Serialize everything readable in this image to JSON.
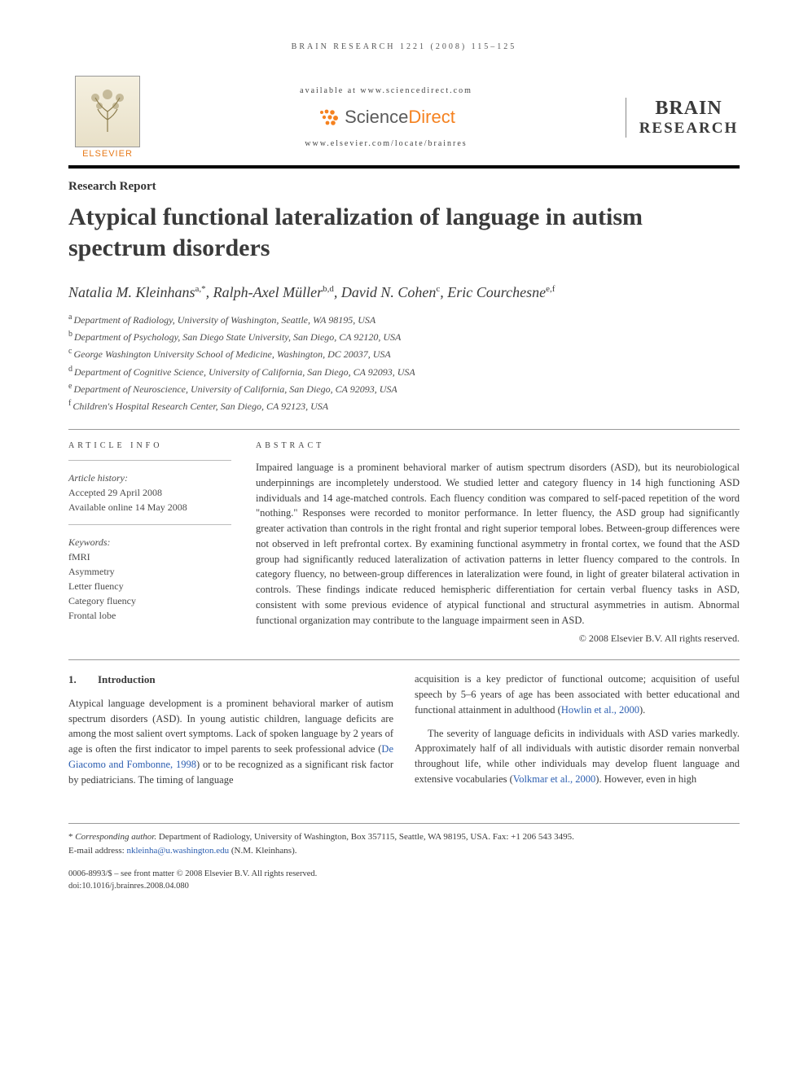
{
  "running_head": "BRAIN RESEARCH 1221 (2008) 115–125",
  "banner": {
    "publisher": "ELSEVIER",
    "available_line": "available at www.sciencedirect.com",
    "sd_brand_prefix": "Science",
    "sd_brand_suffix": "Direct",
    "locate_line": "www.elsevier.com/locate/brainres",
    "journal_line1": "BRAIN",
    "journal_line2": "RESEARCH"
  },
  "article": {
    "section_label": "Research Report",
    "title": "Atypical functional lateralization of language in autism spectrum disorders",
    "authors_html": "Natalia M. Kleinhans",
    "authors": [
      {
        "name": "Natalia M. Kleinhans",
        "sup": "a,*"
      },
      {
        "name": "Ralph-Axel Müller",
        "sup": "b,d"
      },
      {
        "name": "David N. Cohen",
        "sup": "c"
      },
      {
        "name": "Eric Courchesne",
        "sup": "e,f"
      }
    ],
    "affiliations": [
      {
        "sup": "a",
        "text": "Department of Radiology, University of Washington, Seattle, WA 98195, USA"
      },
      {
        "sup": "b",
        "text": "Department of Psychology, San Diego State University, San Diego, CA 92120, USA"
      },
      {
        "sup": "c",
        "text": "George Washington University School of Medicine, Washington, DC 20037, USA"
      },
      {
        "sup": "d",
        "text": "Department of Cognitive Science, University of California, San Diego, CA 92093, USA"
      },
      {
        "sup": "e",
        "text": "Department of Neuroscience, University of California, San Diego, CA 92093, USA"
      },
      {
        "sup": "f",
        "text": "Children's Hospital Research Center, San Diego, CA 92123, USA"
      }
    ]
  },
  "info": {
    "heading": "ARTICLE INFO",
    "history_label": "Article history:",
    "accepted": "Accepted 29 April 2008",
    "online": "Available online 14 May 2008",
    "keywords_label": "Keywords:",
    "keywords": [
      "fMRI",
      "Asymmetry",
      "Letter fluency",
      "Category fluency",
      "Frontal lobe"
    ]
  },
  "abstract": {
    "heading": "ABSTRACT",
    "text": "Impaired language is a prominent behavioral marker of autism spectrum disorders (ASD), but its neurobiological underpinnings are incompletely understood. We studied letter and category fluency in 14 high functioning ASD individuals and 14 age-matched controls. Each fluency condition was compared to self-paced repetition of the word \"nothing.\" Responses were recorded to monitor performance. In letter fluency, the ASD group had significantly greater activation than controls in the right frontal and right superior temporal lobes. Between-group differences were not observed in left prefrontal cortex. By examining functional asymmetry in frontal cortex, we found that the ASD group had significantly reduced lateralization of activation patterns in letter fluency compared to the controls. In category fluency, no between-group differences in lateralization were found, in light of greater bilateral activation in controls. These findings indicate reduced hemispheric differentiation for certain verbal fluency tasks in ASD, consistent with some previous evidence of atypical functional and structural asymmetries in autism. Abnormal functional organization may contribute to the language impairment seen in ASD.",
    "copyright": "© 2008 Elsevier B.V. All rights reserved."
  },
  "body": {
    "section_number": "1.",
    "section_title": "Introduction",
    "col1_p1a": "Atypical language development is a prominent behavioral marker of autism spectrum disorders (ASD). In young autistic children, language deficits are among the most salient overt symptoms. Lack of spoken language by 2 years of age is often the first indicator to impel parents to seek professional advice (",
    "col1_ref1": "De Giacomo and Fombonne, 1998",
    "col1_p1b": ") or to be recognized as a significant risk factor by pediatricians. The timing of language",
    "col2_p1a": "acquisition is a key predictor of functional outcome; acquisition of useful speech by 5–6 years of age has been associated with better educational and functional attainment in adulthood (",
    "col2_ref1": "Howlin et al., 2000",
    "col2_p1b": ").",
    "col2_p2a": "The severity of language deficits in individuals with ASD varies markedly. Approximately half of all individuals with autistic disorder remain nonverbal throughout life, while other individuals may develop fluent language and extensive vocabularies (",
    "col2_ref2": "Volkmar et al., 2000",
    "col2_p2b": "). However, even in high"
  },
  "corr": {
    "star": "*",
    "label": "Corresponding author.",
    "text": " Department of Radiology, University of Washington, Box 357115, Seattle, WA 98195, USA. Fax: +1 206 543 3495.",
    "email_label": "E-mail address: ",
    "email": "nkleinha@u.washington.edu",
    "email_tail": " (N.M. Kleinhans)."
  },
  "bottom": {
    "line1": "0006-8993/$ – see front matter © 2008 Elsevier B.V. All rights reserved.",
    "line2": "doi:10.1016/j.brainres.2008.04.080"
  },
  "colors": {
    "text": "#3a3a3a",
    "orange": "#f58220",
    "elsevier_orange": "#e77a1a",
    "link": "#2a5db0",
    "rule": "#999999"
  }
}
